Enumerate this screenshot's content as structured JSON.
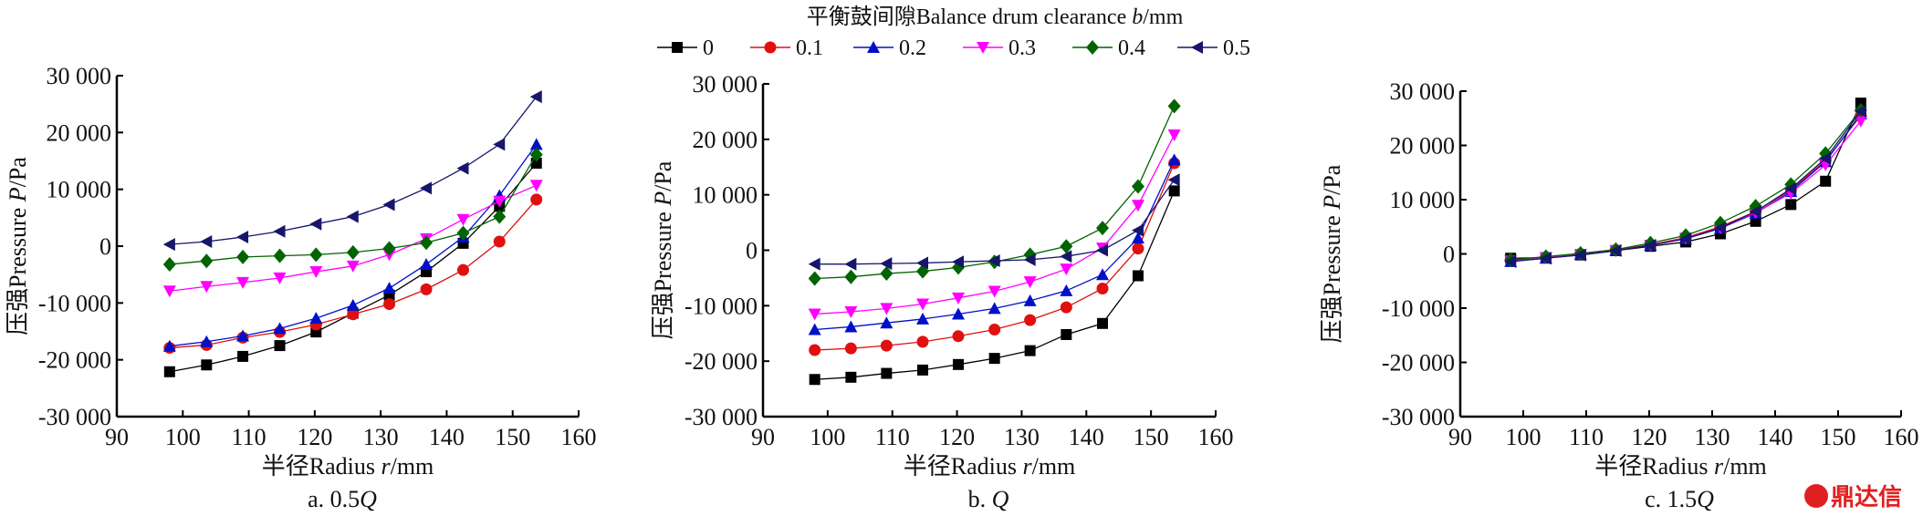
{
  "legend": {
    "title": "平衡鼓间隙Balance drum clearance ",
    "title_var": "b",
    "title_unit": "/mm",
    "placement": "top-center"
  },
  "series_style": [
    {
      "name": "0",
      "color": "#000000",
      "marker": "square"
    },
    {
      "name": "0.1",
      "color": "#e01010",
      "marker": "circle"
    },
    {
      "name": "0.2",
      "color": "#0010c8",
      "marker": "triangle-up"
    },
    {
      "name": "0.3",
      "color": "#ff00ff",
      "marker": "triangle-down"
    },
    {
      "name": "0.4",
      "color": "#006400",
      "marker": "diamond"
    },
    {
      "name": "0.5",
      "color": "#16166a",
      "marker": "triangle-left"
    }
  ],
  "watermark": "鼎达信",
  "chart_data": [
    {
      "type": "line",
      "caption": "a. 0.5",
      "caption_var": "Q",
      "xlabel": "半径Radius ",
      "xlabel_var": "r",
      "xlabel_unit": "/mm",
      "ylabel": "压强Pressure ",
      "ylabel_var": "P",
      "ylabel_unit": "/Pa",
      "xlim": [
        90,
        160
      ],
      "ylim": [
        -30000,
        30000
      ],
      "xticks": [
        "90",
        "100",
        "110",
        "120",
        "130",
        "140",
        "150",
        "160"
      ],
      "yticks": [
        "30 000",
        "20 000",
        "10 000",
        "0",
        "-10 000",
        "-20 000",
        "-30 000"
      ],
      "grid": false,
      "x": [
        98.0,
        103.6,
        109.1,
        114.7,
        120.2,
        125.8,
        131.3,
        136.9,
        142.5,
        148.0,
        153.6
      ],
      "series": [
        {
          "name": "0",
          "values": [
            -22100,
            -20900,
            -19400,
            -17500,
            -15100,
            -11800,
            -8600,
            -4500,
            500,
            7000,
            14600
          ]
        },
        {
          "name": "0.1",
          "values": [
            -17900,
            -17400,
            -16100,
            -15100,
            -13800,
            -12000,
            -10200,
            -7600,
            -4200,
            800,
            8200
          ]
        },
        {
          "name": "0.2",
          "values": [
            -17600,
            -16800,
            -15800,
            -14500,
            -12700,
            -10400,
            -7400,
            -3200,
            1600,
            8900,
            17900
          ]
        },
        {
          "name": "0.3",
          "values": [
            -7900,
            -7100,
            -6400,
            -5600,
            -4500,
            -3500,
            -1500,
            1300,
            4700,
            7900,
            10700
          ]
        },
        {
          "name": "0.4",
          "values": [
            -3200,
            -2600,
            -1900,
            -1700,
            -1500,
            -1100,
            -400,
            600,
            2300,
            5200,
            16100
          ]
        },
        {
          "name": "0.5",
          "values": [
            300,
            800,
            1600,
            2600,
            3900,
            5200,
            7300,
            10200,
            13700,
            17900,
            26300
          ]
        }
      ]
    },
    {
      "type": "line",
      "caption": "b. ",
      "caption_var": "Q",
      "xlabel": "半径Radius ",
      "xlabel_var": "r",
      "xlabel_unit": "/mm",
      "ylabel": "压强Pressure ",
      "ylabel_var": "P",
      "ylabel_unit": "/Pa",
      "xlim": [
        90,
        160
      ],
      "ylim": [
        -30000,
        30000
      ],
      "xticks": [
        "90",
        "100",
        "110",
        "120",
        "130",
        "140",
        "150",
        "160"
      ],
      "yticks": [
        "30 000",
        "20 000",
        "10 000",
        "0",
        "-10 000",
        "-20 000",
        "-30 000"
      ],
      "grid": false,
      "x": [
        98.0,
        103.6,
        109.1,
        114.7,
        120.2,
        125.8,
        131.3,
        136.9,
        142.5,
        148.0,
        153.6
      ],
      "series": [
        {
          "name": "0",
          "values": [
            -23300,
            -22900,
            -22200,
            -21600,
            -20600,
            -19500,
            -18100,
            -15200,
            -13200,
            -4600,
            10700
          ]
        },
        {
          "name": "0.1",
          "values": [
            -18000,
            -17700,
            -17200,
            -16500,
            -15500,
            -14300,
            -12600,
            -10300,
            -6900,
            300,
            15700
          ]
        },
        {
          "name": "0.2",
          "values": [
            -14300,
            -13800,
            -13100,
            -12400,
            -11500,
            -10500,
            -9100,
            -7300,
            -4400,
            2200,
            16300
          ]
        },
        {
          "name": "0.3",
          "values": [
            -11500,
            -11100,
            -10500,
            -9700,
            -8600,
            -7400,
            -5700,
            -3400,
            400,
            8100,
            20800
          ]
        },
        {
          "name": "0.4",
          "values": [
            -5100,
            -4800,
            -4200,
            -3800,
            -3100,
            -2100,
            -800,
            700,
            4000,
            11500,
            26000
          ]
        },
        {
          "name": "0.5",
          "values": [
            -2500,
            -2500,
            -2400,
            -2300,
            -2100,
            -1900,
            -1700,
            -1100,
            0,
            3600,
            12700
          ]
        }
      ]
    },
    {
      "type": "line",
      "caption": "c. 1.5",
      "caption_var": "Q",
      "xlabel": "半径Radius ",
      "xlabel_var": "r",
      "xlabel_unit": "/mm",
      "ylabel": "压强Pressure ",
      "ylabel_var": "P",
      "ylabel_unit": "/Pa",
      "xlim": [
        90,
        160
      ],
      "ylim": [
        -30000,
        30000
      ],
      "xticks": [
        "90",
        "100",
        "110",
        "120",
        "130",
        "140",
        "150",
        "160"
      ],
      "yticks": [
        "30 000",
        "20 000",
        "10 000",
        "0",
        "-10 000",
        "-20 000",
        "-30 000"
      ],
      "grid": false,
      "x": [
        98.0,
        103.6,
        109.1,
        114.7,
        120.2,
        125.8,
        131.3,
        136.9,
        142.5,
        148.0,
        153.6
      ],
      "series": [
        {
          "name": "0",
          "values": [
            -800,
            -700,
            -200,
            600,
            1400,
            2200,
            3700,
            6000,
            9100,
            13400,
            27800
          ]
        },
        {
          "name": "0.1",
          "values": [
            -1200,
            -600,
            0,
            700,
            1700,
            3000,
            5000,
            7800,
            11800,
            17200,
            25500
          ]
        },
        {
          "name": "0.2",
          "values": [
            -1400,
            -800,
            -100,
            600,
            1600,
            2800,
            4700,
            7500,
            11500,
            17000,
            25800
          ]
        },
        {
          "name": "0.3",
          "values": [
            -1300,
            -700,
            -100,
            600,
            1600,
            2900,
            4800,
            7600,
            11200,
            16400,
            24500
          ]
        },
        {
          "name": "0.4",
          "values": [
            -1100,
            -500,
            100,
            800,
            2000,
            3400,
            5700,
            8800,
            12800,
            18500,
            26500
          ]
        },
        {
          "name": "0.5",
          "values": [
            -1400,
            -800,
            -200,
            600,
            1600,
            2800,
            4800,
            7800,
            12000,
            17600,
            26300
          ]
        }
      ]
    }
  ]
}
